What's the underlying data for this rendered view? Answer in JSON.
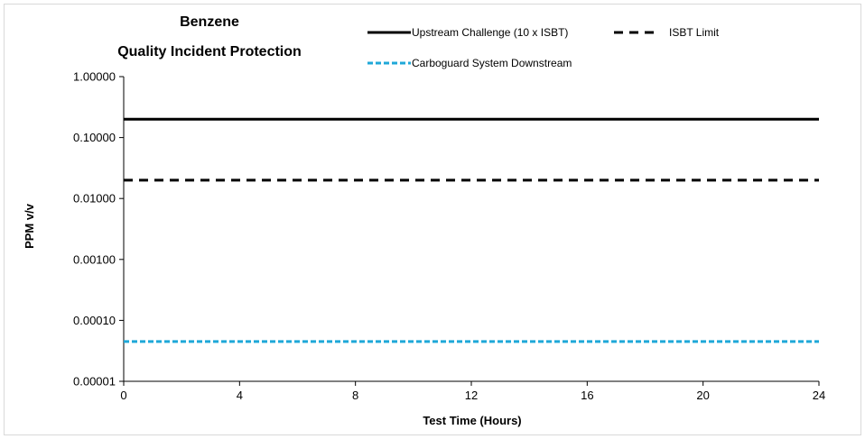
{
  "chart_data": {
    "type": "line",
    "title_lines": [
      "Benzene",
      "Quality Incident Protection"
    ],
    "xlabel": "Test Time (Hours)",
    "ylabel": "PPM v/v",
    "xlim": [
      0,
      24
    ],
    "ylim": [
      1e-05,
      1
    ],
    "yscale": "log",
    "x_ticks": [
      0,
      4,
      8,
      12,
      16,
      20,
      24
    ],
    "x_tick_labels": [
      "0",
      "4",
      "8",
      "12",
      "16",
      "20",
      "24"
    ],
    "y_ticks": [
      1e-05,
      0.0001,
      0.001,
      0.01,
      0.1,
      1
    ],
    "y_tick_labels": [
      "0.00001",
      "0.00010",
      "0.00100",
      "0.01000",
      "0.10000",
      "1.00000"
    ],
    "grid": false,
    "legend_position": "top",
    "series": [
      {
        "name": "Upstream Challenge (10 x ISBT)",
        "x": [
          0,
          24
        ],
        "values": [
          0.2,
          0.2
        ],
        "color": "#000000",
        "style": "solid"
      },
      {
        "name": "ISBT Limit",
        "x": [
          0,
          24
        ],
        "values": [
          0.02,
          0.02
        ],
        "color": "#000000",
        "style": "dashed"
      },
      {
        "name": "Carboguard System Downstream",
        "x": [
          0,
          24
        ],
        "values": [
          4.5e-05,
          4.5e-05
        ],
        "color": "#1fa8d8",
        "style": "dotted"
      }
    ]
  }
}
